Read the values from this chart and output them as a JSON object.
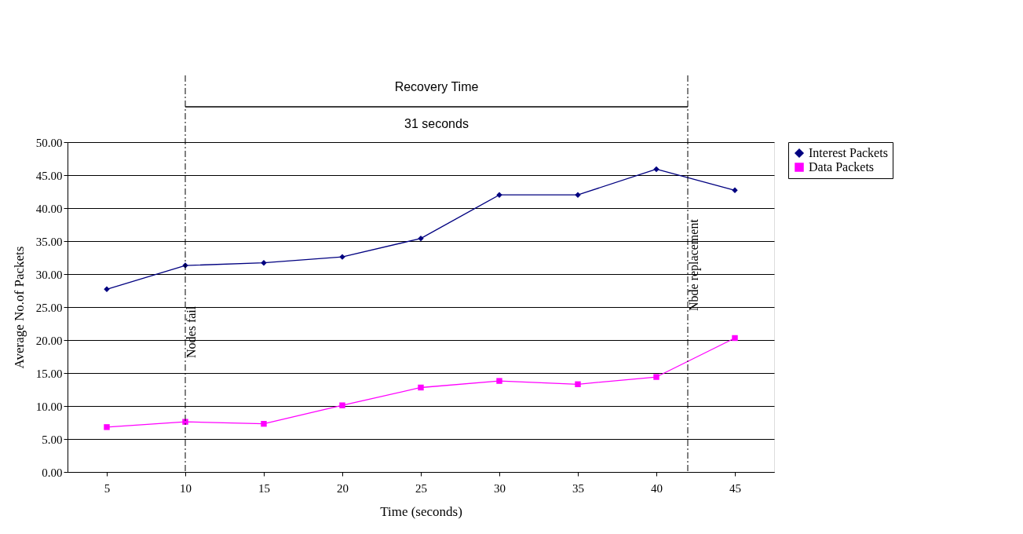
{
  "chart_data": {
    "type": "line",
    "xlabel": "Time (seconds)",
    "ylabel": "Average No.of Packets",
    "x": [
      5,
      10,
      15,
      20,
      25,
      30,
      35,
      40,
      45
    ],
    "xlim": [
      2.5,
      47.5
    ],
    "xticks": [
      5,
      10,
      15,
      20,
      25,
      30,
      35,
      40,
      45
    ],
    "ylim": [
      0,
      50
    ],
    "yticks": [
      {
        "value": 0,
        "label": "0.00"
      },
      {
        "value": 5,
        "label": "5.00"
      },
      {
        "value": 10,
        "label": "10.00"
      },
      {
        "value": 15,
        "label": "15.00"
      },
      {
        "value": 20,
        "label": "20.00"
      },
      {
        "value": 25,
        "label": "25.00"
      },
      {
        "value": 30,
        "label": "30.00"
      },
      {
        "value": 35,
        "label": "35.00"
      },
      {
        "value": 40,
        "label": "40.00"
      },
      {
        "value": 45,
        "label": "45.00"
      },
      {
        "value": 50,
        "label": "50.00"
      }
    ],
    "series": [
      {
        "name": "Interest Packets",
        "color": "#000080",
        "marker": "diamond",
        "values": [
          27.7,
          31.3,
          31.7,
          32.6,
          35.4,
          42.0,
          42.0,
          45.9,
          42.7
        ]
      },
      {
        "name": "Data Packets",
        "color": "#ff00ff",
        "marker": "square",
        "values": [
          6.8,
          7.6,
          7.3,
          10.1,
          12.8,
          13.8,
          13.3,
          14.4,
          20.3
        ]
      }
    ],
    "ref_lines": [
      {
        "axis": "x",
        "value": 10,
        "label": "Nodes fail",
        "line_style": "dashed"
      },
      {
        "axis": "x",
        "value": 42,
        "label": "Nbde replacement",
        "line_style": "dashed"
      }
    ],
    "annotations": [
      "Recovery Time",
      "31 seconds"
    ],
    "grid": "y",
    "legend": "right",
    "line_style": "solid"
  }
}
